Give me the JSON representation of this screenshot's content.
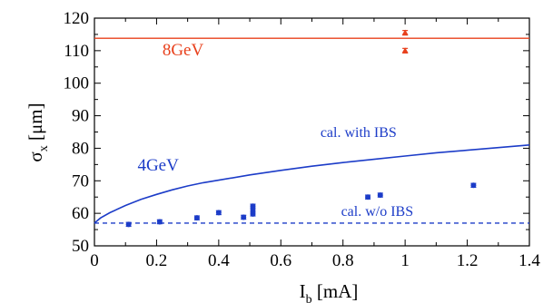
{
  "chart_data": {
    "type": "scatter",
    "title": "",
    "xlabel": {
      "main": "I",
      "sub": "b",
      "suffix": " [mA]"
    },
    "ylabel": {
      "main": "σ",
      "sub": "x",
      "suffix": " [μm]"
    },
    "xlim": [
      0,
      1.4
    ],
    "ylim": [
      50,
      120
    ],
    "xticks": [
      0,
      0.2,
      0.4,
      0.6,
      0.8,
      1,
      1.2,
      1.4
    ],
    "xtick_labels": [
      "0",
      "0.2",
      "0.4",
      "0.6",
      "0.8",
      "1",
      "1.2",
      "1.4"
    ],
    "yticks": [
      50,
      60,
      70,
      80,
      90,
      100,
      110,
      120
    ],
    "ytick_labels": [
      "50",
      "60",
      "70",
      "80",
      "90",
      "100",
      "110",
      "120"
    ],
    "grid": false,
    "colors": {
      "her": "#e8401c",
      "ler": "#1c3cc8",
      "axis": "#000000"
    },
    "series": [
      {
        "kind": "hline",
        "y": 113.8,
        "color": "#e8401c",
        "style": "solid"
      },
      {
        "kind": "points",
        "color": "#e8401c",
        "marker": "triangle",
        "points": [
          {
            "x": 1.0,
            "y": 115.5,
            "err": 0.7
          },
          {
            "x": 1.0,
            "y": 110.0,
            "err": 0.7
          }
        ]
      },
      {
        "kind": "line",
        "color": "#1c3cc8",
        "style": "solid",
        "x": [
          0,
          0.02,
          0.05,
          0.1,
          0.15,
          0.2,
          0.25,
          0.3,
          0.35,
          0.4,
          0.5,
          0.6,
          0.7,
          0.8,
          0.9,
          1.0,
          1.1,
          1.2,
          1.3,
          1.4
        ],
        "y": [
          57.0,
          58.6,
          60.2,
          62.4,
          64.3,
          65.8,
          67.2,
          68.4,
          69.4,
          70.2,
          71.8,
          73.2,
          74.5,
          75.6,
          76.6,
          77.6,
          78.6,
          79.4,
          80.2,
          81.0
        ]
      },
      {
        "kind": "hline",
        "y": 57.0,
        "color": "#1c3cc8",
        "style": "dashed"
      },
      {
        "kind": "points",
        "color": "#1c3cc8",
        "marker": "circle",
        "points": [
          {
            "x": 0.11,
            "y": 56.6,
            "err": 0.6
          },
          {
            "x": 0.21,
            "y": 57.4,
            "err": 0.6
          },
          {
            "x": 0.33,
            "y": 58.6,
            "err": 0.6
          },
          {
            "x": 0.4,
            "y": 60.2,
            "err": 0.6
          },
          {
            "x": 0.48,
            "y": 58.8,
            "err": 0.6
          },
          {
            "x": 0.51,
            "y": 59.8,
            "err": 0.6
          },
          {
            "x": 0.51,
            "y": 61.0,
            "err": 0.6
          },
          {
            "x": 0.51,
            "y": 62.2,
            "err": 0.6
          },
          {
            "x": 0.88,
            "y": 65.0,
            "err": 0.6
          },
          {
            "x": 0.92,
            "y": 65.6,
            "err": 0.6
          },
          {
            "x": 1.22,
            "y": 68.6,
            "err": 0.6
          }
        ]
      }
    ],
    "annotations": [
      {
        "text": "8GeV",
        "x": 0.285,
        "y": 108.5,
        "color": "#e8401c",
        "size": "large"
      },
      {
        "text": "4GeV",
        "x": 0.205,
        "y": 73.2,
        "color": "#1c3cc8",
        "size": "large"
      },
      {
        "text": "cal. with IBS",
        "x": 0.85,
        "y": 83.4,
        "color": "#1c3cc8",
        "size": "small"
      },
      {
        "text": "cal. w/o IBS",
        "x": 0.91,
        "y": 59.2,
        "color": "#1c3cc8",
        "size": "small"
      }
    ]
  }
}
